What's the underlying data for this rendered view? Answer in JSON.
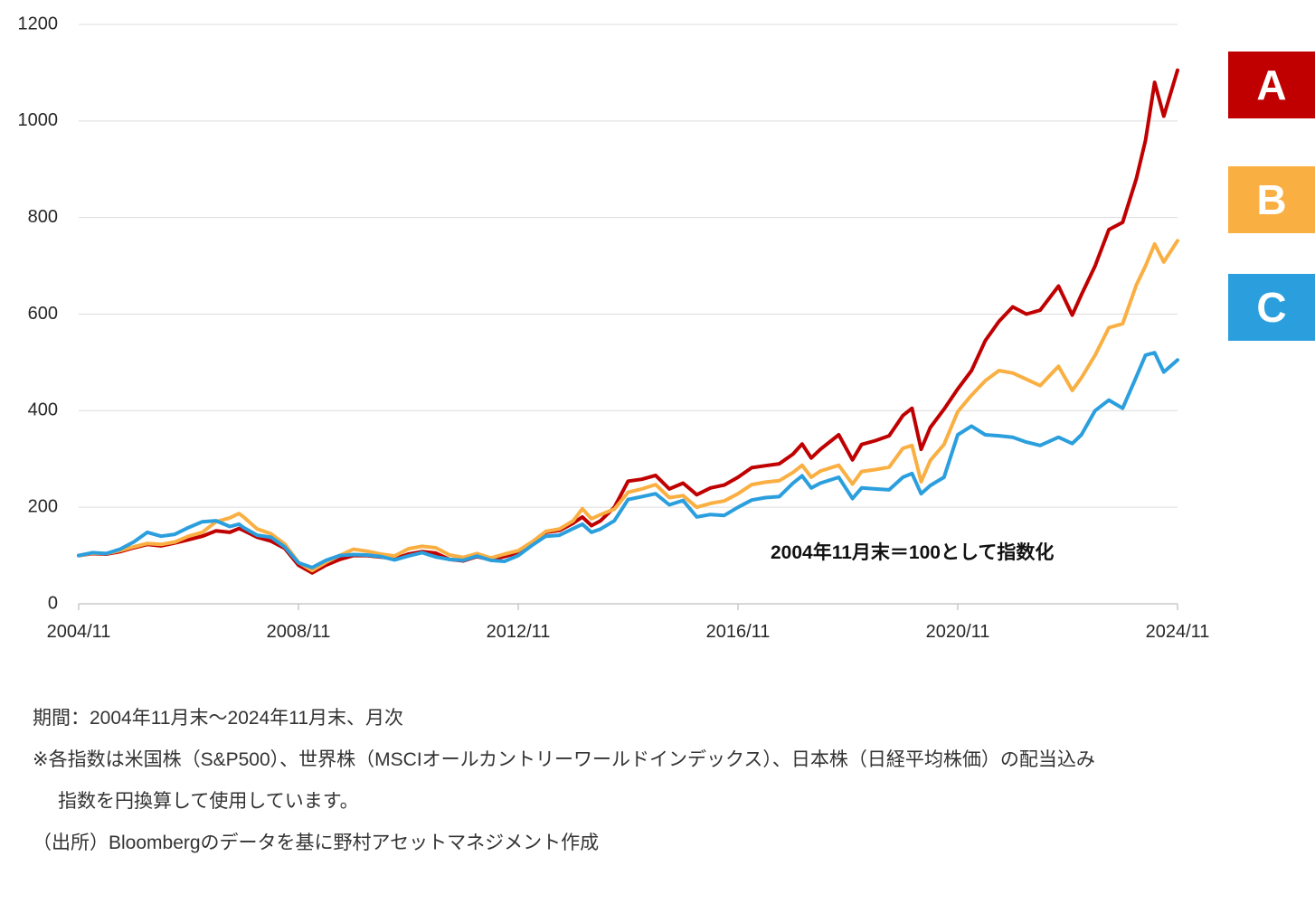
{
  "chart_data": {
    "type": "line",
    "title": "",
    "xlabel": "",
    "ylabel": "",
    "ylim": [
      0,
      1200
    ],
    "y_ticks": [
      0,
      200,
      400,
      600,
      800,
      1000,
      1200
    ],
    "x_label_ticks": [
      "2004/11",
      "2008/11",
      "2012/11",
      "2016/11",
      "2020/11",
      "2024/11"
    ],
    "grid": true,
    "legend_position": "right",
    "annotation": "2004年11月末＝100として指数化",
    "x": [
      "2004/11",
      "2005/02",
      "2005/05",
      "2005/08",
      "2005/11",
      "2006/02",
      "2006/05",
      "2006/08",
      "2006/11",
      "2007/02",
      "2007/05",
      "2007/08",
      "2007/10",
      "2007/11",
      "2008/02",
      "2008/05",
      "2008/08",
      "2008/11",
      "2009/02",
      "2009/05",
      "2009/08",
      "2009/11",
      "2010/02",
      "2010/05",
      "2010/08",
      "2010/11",
      "2011/02",
      "2011/05",
      "2011/08",
      "2011/11",
      "2012/02",
      "2012/05",
      "2012/08",
      "2012/11",
      "2013/02",
      "2013/05",
      "2013/08",
      "2013/11",
      "2014/01",
      "2014/03",
      "2014/05",
      "2014/08",
      "2014/11",
      "2015/02",
      "2015/05",
      "2015/08",
      "2015/11",
      "2016/02",
      "2016/05",
      "2016/08",
      "2016/11",
      "2017/02",
      "2017/05",
      "2017/08",
      "2017/11",
      "2018/01",
      "2018/03",
      "2018/05",
      "2018/09",
      "2018/12",
      "2019/02",
      "2019/05",
      "2019/08",
      "2019/11",
      "2020/01",
      "2020/03",
      "2020/05",
      "2020/08",
      "2020/11",
      "2021/02",
      "2021/05",
      "2021/08",
      "2021/11",
      "2022/02",
      "2022/05",
      "2022/09",
      "2022/12",
      "2023/02",
      "2023/05",
      "2023/08",
      "2023/11",
      "2024/02",
      "2024/04",
      "2024/06",
      "2024/08",
      "2024/11"
    ],
    "series": [
      {
        "name": "A",
        "color": "#C00000",
        "values": [
          100,
          104,
          103,
          108,
          116,
          123,
          120,
          126,
          133,
          140,
          151,
          148,
          156,
          152,
          138,
          130,
          115,
          80,
          64,
          80,
          92,
          100,
          100,
          97,
          93,
          103,
          108,
          105,
          92,
          89,
          98,
          91,
          98,
          106,
          126,
          148,
          152,
          167,
          180,
          162,
          172,
          200,
          254,
          258,
          266,
          238,
          250,
          226,
          240,
          246,
          262,
          282,
          286,
          290,
          310,
          331,
          302,
          320,
          350,
          298,
          330,
          338,
          348,
          390,
          405,
          320,
          365,
          403,
          445,
          483,
          545,
          585,
          615,
          600,
          608,
          658,
          598,
          640,
          700,
          775,
          790,
          880,
          960,
          1080,
          1010,
          1105
        ]
      },
      {
        "name": "B",
        "color": "#FAAF42",
        "values": [
          100,
          105,
          104,
          110,
          118,
          125,
          123,
          128,
          140,
          148,
          170,
          178,
          187,
          180,
          155,
          145,
          124,
          86,
          69,
          86,
          100,
          113,
          109,
          103,
          99,
          114,
          119,
          116,
          101,
          96,
          104,
          95,
          103,
          110,
          128,
          150,
          155,
          172,
          197,
          176,
          185,
          196,
          231,
          238,
          247,
          220,
          224,
          200,
          208,
          213,
          228,
          247,
          252,
          255,
          272,
          287,
          262,
          275,
          287,
          248,
          274,
          278,
          283,
          322,
          328,
          253,
          297,
          330,
          398,
          432,
          462,
          483,
          478,
          465,
          452,
          492,
          442,
          468,
          515,
          572,
          580,
          660,
          700,
          745,
          708,
          752
        ]
      },
      {
        "name": "C",
        "color": "#2B9FDE",
        "values": [
          100,
          106,
          104,
          113,
          128,
          148,
          140,
          144,
          158,
          170,
          172,
          160,
          165,
          158,
          142,
          138,
          118,
          85,
          75,
          90,
          100,
          102,
          101,
          98,
          91,
          99,
          106,
          97,
          92,
          90,
          99,
          90,
          88,
          100,
          121,
          140,
          142,
          156,
          165,
          148,
          155,
          172,
          216,
          222,
          228,
          205,
          214,
          180,
          185,
          183,
          200,
          215,
          220,
          222,
          250,
          265,
          240,
          250,
          262,
          218,
          240,
          238,
          236,
          262,
          270,
          228,
          245,
          262,
          350,
          368,
          350,
          348,
          345,
          335,
          328,
          345,
          332,
          350,
          400,
          422,
          405,
          470,
          515,
          520,
          480,
          505
        ]
      }
    ]
  },
  "legend": {
    "items": [
      {
        "label": "A",
        "color": "#C00000"
      },
      {
        "label": "B",
        "color": "#FAAF42"
      },
      {
        "label": "C",
        "color": "#2B9FDE"
      }
    ]
  },
  "notes": {
    "period": "期間：2004年11月末～2024年11月末、月次",
    "note1": "※各指数は米国株（S&P500）、世界株（MSCIオールカントリーワールドインデックス）、日本株（日経平均株価）の配当込み",
    "note2": "指数を円換算して使用しています。",
    "source": "（出所）Bloombergのデータを基に野村アセットマネジメント作成"
  },
  "colors": {
    "gridline": "#DCDCDC",
    "axis": "#BFBFBF",
    "background": "#FFFFFF"
  }
}
